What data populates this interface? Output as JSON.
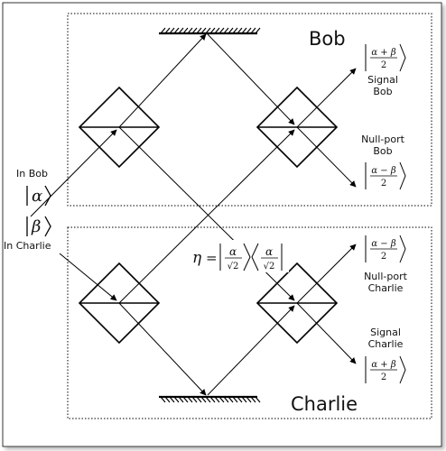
{
  "boxes": {
    "top_title": "Bob",
    "bottom_title": "Charlie"
  },
  "inputs": {
    "in_bob_label": "In Bob",
    "in_charlie_label": "In Charlie",
    "alpha_symbol": "α",
    "beta_symbol": "β"
  },
  "outputs": {
    "signal_bob_label": [
      "Signal",
      "Bob"
    ],
    "nullport_bob_label": [
      "Null-port",
      "Bob"
    ],
    "nullport_charlie_label": [
      "Null-port",
      "Charlie"
    ],
    "signal_charlie_label": [
      "Signal",
      "Charlie"
    ],
    "sum_numerator": "α + β",
    "diff_numerator": "α − β",
    "denominator": "2"
  },
  "eta": {
    "symbol": "η",
    "equals": "=",
    "numerator": "α",
    "denominator": "√2"
  }
}
